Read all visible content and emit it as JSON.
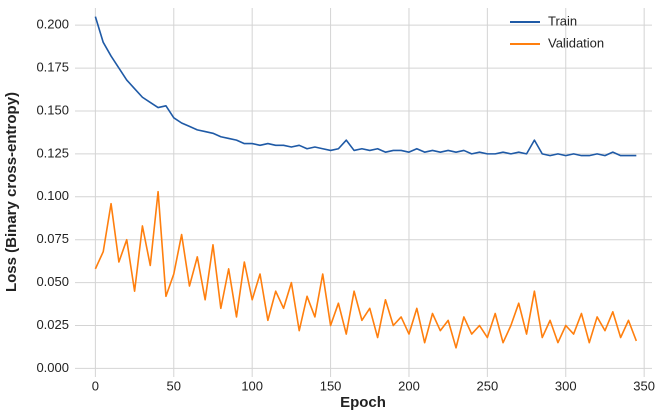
{
  "chart_data": {
    "type": "line",
    "x_label": "Epoch",
    "y_label": "Loss (Binary cross-entropy)",
    "x": [
      0,
      5,
      10,
      15,
      20,
      25,
      30,
      35,
      40,
      45,
      50,
      55,
      60,
      65,
      70,
      75,
      80,
      85,
      90,
      95,
      100,
      105,
      110,
      115,
      120,
      125,
      130,
      135,
      140,
      145,
      150,
      155,
      160,
      165,
      170,
      175,
      180,
      185,
      190,
      195,
      200,
      205,
      210,
      215,
      220,
      225,
      230,
      235,
      240,
      245,
      250,
      255,
      260,
      265,
      270,
      275,
      280,
      285,
      290,
      295,
      300,
      305,
      310,
      315,
      320,
      325,
      330,
      335,
      340,
      345
    ],
    "series": [
      {
        "name": "Train",
        "color": "#1f5aa6",
        "values": [
          0.205,
          0.19,
          0.182,
          0.175,
          0.168,
          0.163,
          0.158,
          0.155,
          0.152,
          0.153,
          0.146,
          0.143,
          0.141,
          0.139,
          0.138,
          0.137,
          0.135,
          0.134,
          0.133,
          0.131,
          0.131,
          0.13,
          0.131,
          0.13,
          0.13,
          0.129,
          0.13,
          0.128,
          0.129,
          0.128,
          0.127,
          0.128,
          0.133,
          0.127,
          0.128,
          0.127,
          0.128,
          0.126,
          0.127,
          0.127,
          0.126,
          0.128,
          0.126,
          0.127,
          0.126,
          0.127,
          0.126,
          0.127,
          0.125,
          0.126,
          0.125,
          0.125,
          0.126,
          0.125,
          0.126,
          0.125,
          0.133,
          0.125,
          0.124,
          0.125,
          0.124,
          0.125,
          0.124,
          0.124,
          0.125,
          0.124,
          0.126,
          0.124,
          0.124,
          0.124
        ]
      },
      {
        "name": "Validation",
        "color": "#ff7f0e",
        "values": [
          0.058,
          0.068,
          0.096,
          0.062,
          0.075,
          0.045,
          0.083,
          0.06,
          0.103,
          0.042,
          0.055,
          0.078,
          0.048,
          0.065,
          0.04,
          0.072,
          0.035,
          0.058,
          0.03,
          0.062,
          0.04,
          0.055,
          0.028,
          0.045,
          0.035,
          0.05,
          0.022,
          0.042,
          0.03,
          0.055,
          0.025,
          0.038,
          0.02,
          0.045,
          0.028,
          0.035,
          0.018,
          0.04,
          0.025,
          0.03,
          0.02,
          0.035,
          0.015,
          0.032,
          0.022,
          0.028,
          0.012,
          0.03,
          0.02,
          0.025,
          0.018,
          0.032,
          0.015,
          0.025,
          0.038,
          0.02,
          0.045,
          0.018,
          0.028,
          0.015,
          0.025,
          0.02,
          0.032,
          0.015,
          0.03,
          0.022,
          0.033,
          0.018,
          0.028,
          0.016
        ]
      }
    ],
    "xlim": [
      -13,
      355
    ],
    "ylim": [
      -0.005,
      0.21
    ],
    "xticks": [
      0,
      50,
      100,
      150,
      200,
      250,
      300,
      350
    ],
    "yticks": [
      {
        "value": 0,
        "label": "0.000"
      },
      {
        "value": 0.025,
        "label": "0.025"
      },
      {
        "value": 0.05,
        "label": "0.050"
      },
      {
        "value": 0.075,
        "label": "0.075"
      },
      {
        "value": 0.1,
        "label": "0.100"
      },
      {
        "value": 0.125,
        "label": "0.125"
      },
      {
        "value": 0.15,
        "label": "0.150"
      },
      {
        "value": 0.175,
        "label": "0.175"
      },
      {
        "value": 0.2,
        "label": "0.200"
      }
    ],
    "grid": true,
    "legend": "upper right"
  }
}
